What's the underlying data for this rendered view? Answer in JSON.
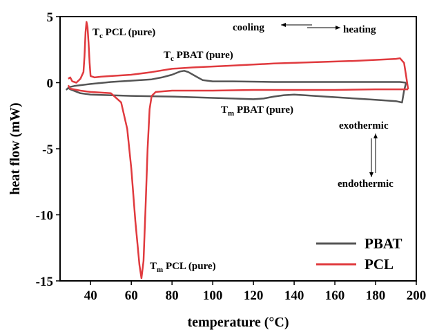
{
  "colors": {
    "PBAT": "#555555",
    "PCL": "#e03a3e",
    "axis": "#000000"
  },
  "chart_data": {
    "type": "line",
    "xlabel": "temperature (°C)",
    "ylabel": "heat flow (mW)",
    "xlim": [
      25,
      200
    ],
    "ylim": [
      -15,
      5
    ],
    "x_ticks": [
      "40",
      "60",
      "80",
      "100",
      "120",
      "140",
      "160",
      "180",
      "200"
    ],
    "y_ticks": [
      "5",
      "0",
      "-5",
      "-10",
      "-15"
    ],
    "grid": false,
    "legend_position": "bottom-right",
    "series": [
      {
        "name": "PBAT",
        "color": "#555555",
        "heating": [
          [
            28,
            -0.55
          ],
          [
            29,
            -0.4
          ],
          [
            30,
            -0.5
          ],
          [
            35,
            -0.8
          ],
          [
            40,
            -0.9
          ],
          [
            60,
            -1.0
          ],
          [
            80,
            -1.05
          ],
          [
            100,
            -1.15
          ],
          [
            110,
            -1.2
          ],
          [
            120,
            -1.25
          ],
          [
            125,
            -1.2
          ],
          [
            130,
            -1.05
          ],
          [
            135,
            -0.95
          ],
          [
            140,
            -0.9
          ],
          [
            145,
            -0.95
          ],
          [
            150,
            -1.0
          ],
          [
            160,
            -1.1
          ],
          [
            170,
            -1.2
          ],
          [
            180,
            -1.3
          ],
          [
            190,
            -1.4
          ],
          [
            193,
            -1.5
          ],
          [
            194,
            -0.6
          ],
          [
            195,
            0.0
          ]
        ],
        "cooling": [
          [
            195,
            0.0
          ],
          [
            192,
            0.05
          ],
          [
            185,
            0.05
          ],
          [
            160,
            0.05
          ],
          [
            130,
            0.05
          ],
          [
            110,
            0.1
          ],
          [
            100,
            0.1
          ],
          [
            95,
            0.2
          ],
          [
            92,
            0.45
          ],
          [
            88,
            0.8
          ],
          [
            86,
            0.9
          ],
          [
            84,
            0.85
          ],
          [
            80,
            0.6
          ],
          [
            75,
            0.4
          ],
          [
            70,
            0.25
          ],
          [
            60,
            0.15
          ],
          [
            50,
            0.05
          ],
          [
            40,
            -0.1
          ],
          [
            32,
            -0.25
          ],
          [
            29,
            -0.35
          ]
        ]
      },
      {
        "name": "PCL",
        "color": "#e03a3e",
        "heating": [
          [
            29,
            -0.2
          ],
          [
            30,
            -0.45
          ],
          [
            35,
            -0.6
          ],
          [
            40,
            -0.7
          ],
          [
            50,
            -0.8
          ],
          [
            55,
            -1.5
          ],
          [
            58,
            -3.5
          ],
          [
            60,
            -6.5
          ],
          [
            62,
            -10.5
          ],
          [
            64,
            -13.8
          ],
          [
            65,
            -14.8
          ],
          [
            66,
            -13.5
          ],
          [
            67,
            -9.5
          ],
          [
            68,
            -5.0
          ],
          [
            69,
            -2.0
          ],
          [
            70,
            -1.0
          ],
          [
            72,
            -0.7
          ],
          [
            80,
            -0.6
          ],
          [
            100,
            -0.6
          ],
          [
            120,
            -0.55
          ],
          [
            140,
            -0.55
          ],
          [
            160,
            -0.55
          ],
          [
            180,
            -0.5
          ],
          [
            190,
            -0.5
          ],
          [
            195,
            -0.5
          ],
          [
            196,
            -0.5
          ]
        ],
        "cooling": [
          [
            196,
            -0.5
          ],
          [
            195,
            0.5
          ],
          [
            194,
            1.5
          ],
          [
            192,
            1.85
          ],
          [
            190,
            1.8
          ],
          [
            170,
            1.65
          ],
          [
            150,
            1.55
          ],
          [
            130,
            1.45
          ],
          [
            110,
            1.3
          ],
          [
            90,
            1.15
          ],
          [
            80,
            1.05
          ],
          [
            70,
            0.8
          ],
          [
            60,
            0.6
          ],
          [
            50,
            0.5
          ],
          [
            45,
            0.45
          ],
          [
            42,
            0.4
          ],
          [
            40,
            0.5
          ],
          [
            39.5,
            1.5
          ],
          [
            39,
            3.0
          ],
          [
            38.5,
            4.2
          ],
          [
            38,
            4.6
          ],
          [
            37.5,
            3.8
          ],
          [
            37,
            2.0
          ],
          [
            36.5,
            0.8
          ],
          [
            35,
            0.3
          ],
          [
            33,
            0.0
          ],
          [
            31,
            0.1
          ],
          [
            30,
            0.4
          ],
          [
            29,
            0.3
          ]
        ]
      }
    ],
    "annotations": [
      {
        "id": "tc-pcl",
        "main": "T",
        "sub": "c",
        "rest": " PCL (pure)"
      },
      {
        "id": "tc-pbat",
        "main": "T",
        "sub": "c",
        "rest": " PBAT (pure)"
      },
      {
        "id": "tm-pbat",
        "main": "T",
        "sub": "m",
        "rest": " PBAT (pure)"
      },
      {
        "id": "tm-pcl",
        "main": "T",
        "sub": "m",
        "rest": " PCL (pure)"
      }
    ],
    "direction_labels": {
      "cooling": "cooling",
      "heating": "heating",
      "exothermic": "exothermic",
      "endothermic": "endothermic"
    }
  }
}
